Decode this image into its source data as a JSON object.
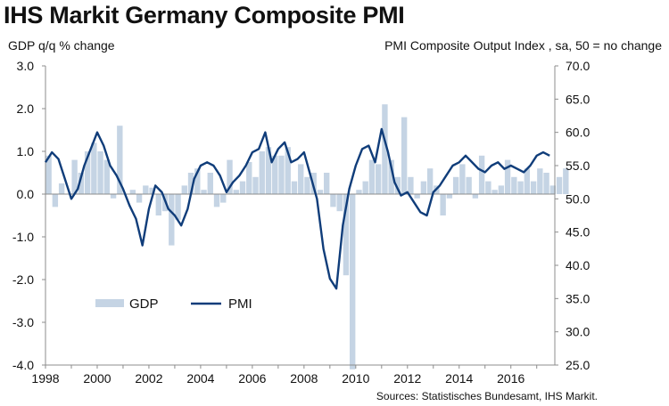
{
  "title": "IHS Markit Germany Composite PMI",
  "left_axis_label": "GDP q/q % change",
  "right_axis_label": "PMI Composite  Output Index , sa, 50 = no change",
  "source": "Sources: Statistisches Bundesamt, IHS Markit.",
  "legend": {
    "gdp": "GDP",
    "pmi": "PMI"
  },
  "colors": {
    "gdp": "#c5d4e4",
    "pmi": "#103d7a",
    "axis": "#8c8c8c"
  },
  "chart_data": {
    "type": "bar+line",
    "x_ticks": [
      "1998",
      "2000",
      "2002",
      "2004",
      "2006",
      "2008",
      "2010",
      "2012",
      "2014",
      "2016"
    ],
    "xlim": [
      1998.0,
      2017.7
    ],
    "left_axis": {
      "label": "GDP q/q % change",
      "ylim": [
        -4.0,
        3.0
      ],
      "ticks": [
        "3.0",
        "2.0",
        "1.0",
        "0.0",
        "-1.0",
        "-2.0",
        "-3.0",
        "-4.0"
      ]
    },
    "right_axis": {
      "label": "PMI Composite  Output Index , sa, 50 = no change",
      "ylim": [
        25.0,
        70.0
      ],
      "ticks": [
        "70.0",
        "65.0",
        "60.0",
        "55.0",
        "50.0",
        "45.0",
        "40.0",
        "35.0",
        "30.0",
        "25.0"
      ]
    },
    "series": [
      {
        "name": "GDP",
        "type": "bar",
        "axis": "left",
        "start": 1998.0,
        "step": 0.25,
        "values": [
          0.9,
          -0.3,
          0.25,
          0.0,
          0.8,
          0.5,
          1.0,
          1.2,
          1.0,
          0.8,
          -0.1,
          1.6,
          0.0,
          0.1,
          -0.2,
          0.2,
          0.15,
          -0.5,
          -0.4,
          -1.2,
          -0.6,
          0.2,
          0.5,
          0.6,
          0.1,
          0.5,
          -0.3,
          -0.2,
          0.8,
          0.1,
          0.3,
          0.75,
          0.4,
          1.0,
          1.1,
          0.9,
          0.9,
          1.1,
          0.3,
          0.7,
          0.4,
          0.5,
          0.1,
          0.5,
          -0.3,
          -0.4,
          -1.9,
          -4.1,
          0.1,
          0.3,
          0.8,
          0.7,
          2.1,
          0.8,
          0.4,
          1.8,
          0.4,
          -0.1,
          0.3,
          0.6,
          0.2,
          -0.5,
          -0.1,
          0.4,
          0.7,
          0.4,
          -0.1,
          0.9,
          0.3,
          0.1,
          0.2,
          0.8,
          0.4,
          0.3,
          0.6,
          0.3,
          0.6,
          0.5,
          0.2,
          0.4,
          0.6
        ]
      },
      {
        "name": "PMI",
        "type": "line",
        "axis": "right",
        "x": [
          1998.0,
          1998.25,
          1998.5,
          1998.75,
          1999.0,
          1999.25,
          1999.5,
          1999.75,
          2000.0,
          2000.25,
          2000.5,
          2000.75,
          2001.0,
          2001.25,
          2001.5,
          2001.75,
          2002.0,
          2002.25,
          2002.5,
          2002.75,
          2003.0,
          2003.25,
          2003.5,
          2003.75,
          2004.0,
          2004.25,
          2004.5,
          2004.75,
          2005.0,
          2005.25,
          2005.5,
          2005.75,
          2006.0,
          2006.25,
          2006.5,
          2006.75,
          2007.0,
          2007.25,
          2007.5,
          2007.75,
          2008.0,
          2008.25,
          2008.5,
          2008.75,
          2009.0,
          2009.25,
          2009.5,
          2009.75,
          2010.0,
          2010.25,
          2010.5,
          2010.75,
          2011.0,
          2011.25,
          2011.5,
          2011.75,
          2012.0,
          2012.25,
          2012.5,
          2012.75,
          2013.0,
          2013.25,
          2013.5,
          2013.75,
          2014.0,
          2014.25,
          2014.5,
          2014.75,
          2015.0,
          2015.25,
          2015.5,
          2015.75,
          2016.0,
          2016.25,
          2016.5,
          2016.75,
          2017.0,
          2017.25,
          2017.5
        ],
        "values": [
          55.5,
          57.0,
          56.0,
          53.0,
          50.0,
          51.5,
          55.0,
          57.5,
          60.0,
          58.0,
          55.0,
          53.5,
          51.5,
          49.0,
          47.0,
          43.0,
          48.5,
          52.0,
          51.0,
          48.5,
          47.5,
          46.0,
          48.5,
          53.0,
          55.0,
          55.5,
          55.0,
          53.5,
          51.0,
          52.5,
          53.5,
          55.0,
          57.0,
          57.5,
          60.0,
          55.5,
          57.5,
          58.5,
          55.5,
          56.0,
          57.0,
          53.5,
          50.0,
          42.5,
          38.0,
          36.5,
          46.0,
          51.5,
          55.0,
          57.5,
          58.0,
          55.5,
          60.5,
          57.0,
          52.5,
          50.5,
          51.0,
          49.5,
          48.0,
          47.5,
          51.0,
          52.0,
          53.5,
          55.0,
          55.5,
          56.5,
          55.5,
          54.5,
          54.0,
          55.0,
          55.5,
          54.5,
          55.0,
          54.5,
          54.0,
          55.0,
          56.5,
          57.0,
          56.5
        ]
      }
    ],
    "grid": false,
    "legend_position": "lower-left"
  }
}
